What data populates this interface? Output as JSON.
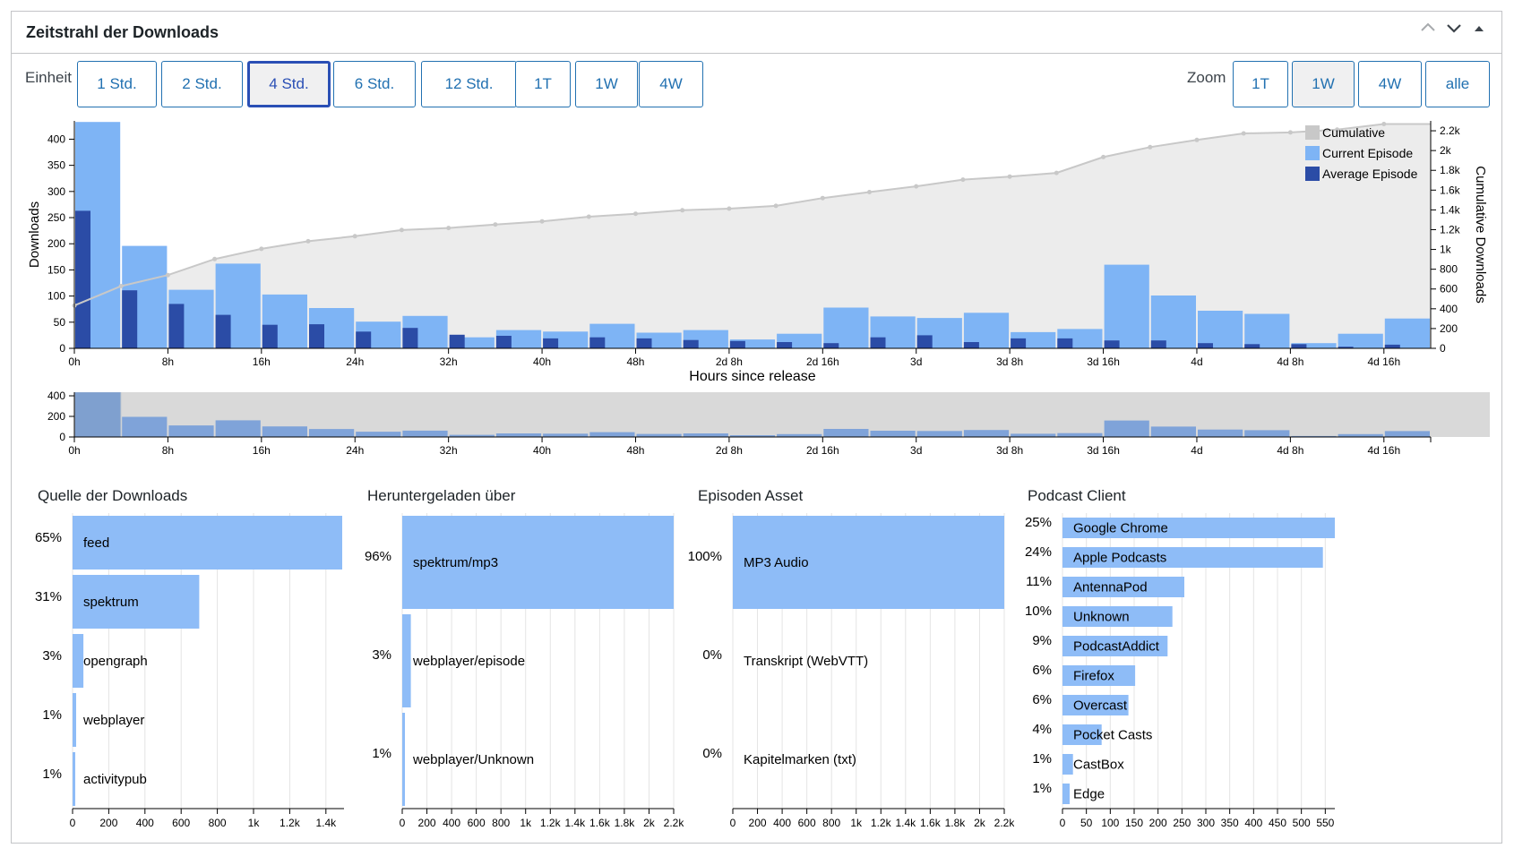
{
  "panel": {
    "title": "Zeitstrahl der Downloads",
    "up_icon": "chevron-up-icon",
    "down_icon": "chevron-down-icon",
    "toggle_icon": "triangle-up-icon"
  },
  "controls": {
    "unit_label": "Einheit",
    "units": [
      "1 Std.",
      "2 Std.",
      "4 Std.",
      "6 Std.",
      "12 Std.",
      "1T",
      "1W",
      "4W"
    ],
    "active_unit": "4 Std.",
    "zoom_label": "Zoom",
    "zooms": [
      "1T",
      "1W",
      "4W",
      "alle"
    ],
    "active_zoom": "1W"
  },
  "colors": {
    "current": "#7eb4f5",
    "average": "#2b4ca6",
    "cumulative_fill": "#ececec",
    "cumulative_line": "#c8c8c8",
    "bars": "#8ebcf7",
    "accent": "#2271b1"
  },
  "chart_data": [
    {
      "type": "bar",
      "subtype": "timeline",
      "xlabel": "Hours since release",
      "ylabel": "Downloads",
      "y2label": "Cumulative Downloads",
      "ylim": [
        0,
        435
      ],
      "y2lim": [
        0,
        2300
      ],
      "yticks": [
        "0",
        "50",
        "100",
        "150",
        "200",
        "250",
        "300",
        "350",
        "400"
      ],
      "y2ticks": [
        "0",
        "200",
        "400",
        "600",
        "800",
        "1k",
        "1.2k",
        "1.4k",
        "1.6k",
        "1.8k",
        "2k",
        "2.2k"
      ],
      "xticks": [
        "0h",
        "8h",
        "16h",
        "24h",
        "32h",
        "40h",
        "48h",
        "2d 8h",
        "2d 16h",
        "3d",
        "3d 8h",
        "3d 16h",
        "4d",
        "4d 8h",
        "4d 16h"
      ],
      "xunit_hours": 4,
      "legend": [
        "Cumulative",
        "Current Episode",
        "Average Episode"
      ],
      "legend_position": "top-right",
      "series": [
        {
          "name": "Current Episode",
          "values": [
            433,
            196,
            112,
            162,
            103,
            77,
            51,
            62,
            21,
            35,
            32,
            47,
            30,
            35,
            17,
            28,
            78,
            61,
            58,
            68,
            31,
            37,
            160,
            101,
            72,
            66,
            10,
            28,
            57
          ]
        },
        {
          "name": "Average Episode",
          "values": [
            263,
            111,
            85,
            64,
            45,
            46,
            32,
            39,
            26,
            24,
            19,
            21,
            19,
            16,
            14,
            12,
            10,
            21,
            25,
            12,
            19,
            19,
            15,
            15,
            10,
            8,
            8,
            3,
            7
          ]
        },
        {
          "name": "Cumulative",
          "values": [
            433,
            629,
            741,
            903,
            1006,
            1083,
            1134,
            1196,
            1217,
            1252,
            1284,
            1331,
            1361,
            1396,
            1413,
            1441,
            1519,
            1580,
            1638,
            1706,
            1737,
            1774,
            1934,
            2035,
            2107,
            2173,
            2183,
            2211,
            2268
          ]
        }
      ]
    },
    {
      "type": "bar",
      "subtype": "overview",
      "ylim": [
        0,
        435
      ],
      "yticks": [
        "0",
        "200",
        "400"
      ],
      "xticks": [
        "0h",
        "8h",
        "16h",
        "24h",
        "32h",
        "40h",
        "48h",
        "2d 8h",
        "2d 16h",
        "3d",
        "3d 8h",
        "3d 16h",
        "4d",
        "4d 8h",
        "4d 16h"
      ]
    },
    {
      "type": "bar",
      "orientation": "horizontal",
      "title": "Quelle der Downloads",
      "categories": [
        "feed",
        "spektrum",
        "opengraph",
        "webplayer",
        "activitypub"
      ],
      "percent_labels": [
        "65%",
        "31%",
        "3%",
        "1%",
        "1%"
      ],
      "values": [
        1490,
        700,
        60,
        20,
        15
      ],
      "xlim": [
        0,
        1500
      ],
      "xticks": [
        0,
        200,
        400,
        600,
        800,
        1000,
        1200,
        1400
      ],
      "xticklabels": [
        "0",
        "200",
        "400",
        "600",
        "800",
        "1k",
        "1.2k",
        "1.4k"
      ]
    },
    {
      "type": "bar",
      "orientation": "horizontal",
      "title": "Heruntergeladen über",
      "categories": [
        "spektrum/mp3",
        "webplayer/episode",
        "webplayer/Unknown"
      ],
      "percent_labels": [
        "96%",
        "3%",
        "1%"
      ],
      "values": [
        2200,
        70,
        15
      ],
      "xlim": [
        0,
        2200
      ],
      "xticks": [
        0,
        200,
        400,
        600,
        800,
        1000,
        1200,
        1400,
        1600,
        1800,
        2000,
        2200
      ],
      "xticklabels": [
        "0",
        "200",
        "400",
        "600",
        "800",
        "1k",
        "1.2k",
        "1.4k",
        "1.6k",
        "1.8k",
        "2k",
        "2.2k"
      ]
    },
    {
      "type": "bar",
      "orientation": "horizontal",
      "title": "Episoden Asset",
      "categories": [
        "MP3 Audio",
        "Transkript (WebVTT)",
        "Kapitelmarken (txt)"
      ],
      "percent_labels": [
        "100%",
        "0%",
        "0%"
      ],
      "values": [
        2200,
        0,
        0
      ],
      "xlim": [
        0,
        2200
      ],
      "xticks": [
        0,
        200,
        400,
        600,
        800,
        1000,
        1200,
        1400,
        1600,
        1800,
        2000,
        2200
      ],
      "xticklabels": [
        "0",
        "200",
        "400",
        "600",
        "800",
        "1k",
        "1.2k",
        "1.4k",
        "1.6k",
        "1.8k",
        "2k",
        "2.2k"
      ]
    },
    {
      "type": "bar",
      "orientation": "horizontal",
      "title": "Podcast Client",
      "categories": [
        "Google Chrome",
        "Apple Podcasts",
        "AntennaPod",
        "Unknown",
        "PodcastAddict",
        "Firefox",
        "Overcast",
        "Pocket Casts",
        "CastBox",
        "Edge"
      ],
      "percent_labels": [
        "25%",
        "24%",
        "11%",
        "10%",
        "9%",
        "6%",
        "6%",
        "4%",
        "1%",
        "1%"
      ],
      "values": [
        570,
        545,
        255,
        230,
        220,
        152,
        138,
        82,
        22,
        15
      ],
      "xlim": [
        0,
        570
      ],
      "xticks": [
        0,
        50,
        100,
        150,
        200,
        250,
        300,
        350,
        400,
        450,
        500,
        550
      ],
      "xticklabels": [
        "0",
        "50",
        "100",
        "150",
        "200",
        "250",
        "300",
        "350",
        "400",
        "450",
        "500",
        "550"
      ]
    }
  ]
}
